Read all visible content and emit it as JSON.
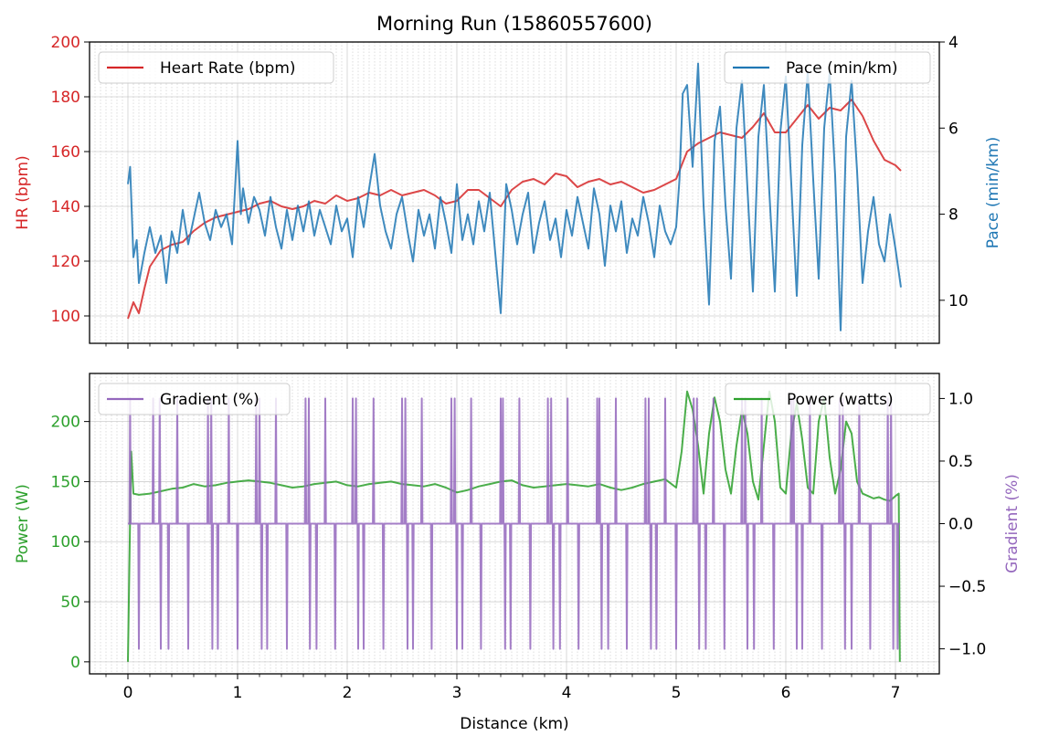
{
  "title": "Morning Run (15860557600)",
  "colors": {
    "hr": "#d62728",
    "pace": "#1f77b4",
    "power": "#2ca02c",
    "gradient": "#9467bd",
    "grid": "#b0b0b0"
  },
  "chart_data": [
    {
      "type": "line",
      "panel": "top",
      "xlabel": "",
      "x_range": [
        -0.35,
        7.4
      ],
      "x_ticks": [
        0,
        1,
        2,
        3,
        4,
        5,
        6,
        7
      ],
      "grid": true,
      "left_axis": {
        "label": "HR (bpm)",
        "range": [
          90,
          200
        ],
        "ticks": [
          100,
          120,
          140,
          160,
          180,
          200
        ]
      },
      "right_axis": {
        "label": "Pace (min/km)",
        "inverted": true,
        "range": [
          4,
          11
        ],
        "ticks": [
          4,
          6,
          8,
          10
        ]
      },
      "legend_left": {
        "label": "Heart Rate (bpm)",
        "placement": "upper-left"
      },
      "legend_right": {
        "label": "Pace (min/km)",
        "placement": "upper-right"
      },
      "series": [
        {
          "name": "Heart Rate (bpm)",
          "axis": "left",
          "x": [
            0,
            0.05,
            0.1,
            0.15,
            0.2,
            0.3,
            0.4,
            0.5,
            0.6,
            0.7,
            0.8,
            0.9,
            1.0,
            1.1,
            1.2,
            1.3,
            1.4,
            1.5,
            1.6,
            1.7,
            1.8,
            1.9,
            2.0,
            2.1,
            2.2,
            2.3,
            2.4,
            2.5,
            2.6,
            2.7,
            2.8,
            2.9,
            3.0,
            3.1,
            3.2,
            3.3,
            3.4,
            3.5,
            3.6,
            3.7,
            3.8,
            3.9,
            4.0,
            4.1,
            4.2,
            4.3,
            4.4,
            4.5,
            4.6,
            4.7,
            4.8,
            4.9,
            5.0,
            5.05,
            5.1,
            5.2,
            5.3,
            5.4,
            5.5,
            5.6,
            5.7,
            5.8,
            5.9,
            6.0,
            6.1,
            6.2,
            6.3,
            6.4,
            6.5,
            6.6,
            6.7,
            6.8,
            6.9,
            7.0,
            7.05
          ],
          "y": [
            99,
            105,
            101,
            110,
            118,
            124,
            126,
            127,
            131,
            134,
            136,
            137,
            138,
            139,
            141,
            142,
            140,
            139,
            140,
            142,
            141,
            144,
            142,
            143,
            145,
            144,
            146,
            144,
            145,
            146,
            144,
            141,
            142,
            146,
            146,
            143,
            140,
            146,
            149,
            150,
            148,
            152,
            151,
            147,
            149,
            150,
            148,
            149,
            147,
            145,
            146,
            148,
            150,
            155,
            160,
            163,
            165,
            167,
            166,
            165,
            169,
            174,
            167,
            167,
            172,
            177,
            172,
            176,
            175,
            179,
            173,
            164,
            157,
            155,
            153
          ]
        },
        {
          "name": "Pace (min/km)",
          "axis": "right",
          "x": [
            0,
            0.02,
            0.05,
            0.08,
            0.1,
            0.15,
            0.2,
            0.25,
            0.3,
            0.35,
            0.4,
            0.45,
            0.5,
            0.55,
            0.6,
            0.65,
            0.7,
            0.75,
            0.8,
            0.85,
            0.9,
            0.95,
            1.0,
            1.03,
            1.05,
            1.1,
            1.15,
            1.2,
            1.25,
            1.3,
            1.35,
            1.4,
            1.45,
            1.5,
            1.55,
            1.6,
            1.65,
            1.7,
            1.75,
            1.8,
            1.85,
            1.9,
            1.95,
            2.0,
            2.05,
            2.1,
            2.15,
            2.2,
            2.25,
            2.3,
            2.35,
            2.4,
            2.45,
            2.5,
            2.55,
            2.6,
            2.65,
            2.7,
            2.75,
            2.8,
            2.85,
            2.9,
            2.95,
            3.0,
            3.05,
            3.1,
            3.15,
            3.2,
            3.25,
            3.3,
            3.35,
            3.4,
            3.45,
            3.5,
            3.55,
            3.6,
            3.65,
            3.7,
            3.75,
            3.8,
            3.85,
            3.9,
            3.95,
            4.0,
            4.05,
            4.1,
            4.15,
            4.2,
            4.25,
            4.3,
            4.35,
            4.4,
            4.45,
            4.5,
            4.55,
            4.6,
            4.65,
            4.7,
            4.75,
            4.8,
            4.85,
            4.9,
            4.95,
            5.0,
            5.03,
            5.06,
            5.1,
            5.15,
            5.2,
            5.25,
            5.3,
            5.35,
            5.4,
            5.45,
            5.5,
            5.55,
            5.6,
            5.65,
            5.7,
            5.75,
            5.8,
            5.85,
            5.9,
            5.95,
            6.0,
            6.05,
            6.1,
            6.15,
            6.2,
            6.25,
            6.3,
            6.35,
            6.4,
            6.45,
            6.5,
            6.55,
            6.6,
            6.65,
            6.7,
            6.75,
            6.8,
            6.85,
            6.9,
            6.95,
            7.0,
            7.05
          ],
          "y": [
            7.3,
            6.9,
            9.0,
            8.6,
            9.6,
            8.9,
            8.3,
            8.9,
            8.5,
            9.6,
            8.4,
            8.9,
            7.9,
            8.7,
            8.1,
            7.5,
            8.2,
            8.6,
            7.9,
            8.3,
            8.0,
            8.7,
            6.3,
            8.0,
            7.4,
            8.2,
            7.6,
            7.9,
            8.5,
            7.6,
            8.3,
            8.8,
            7.9,
            8.6,
            7.8,
            8.4,
            7.7,
            8.5,
            7.9,
            8.3,
            8.7,
            7.8,
            8.4,
            8.1,
            9.0,
            7.6,
            8.3,
            7.4,
            6.6,
            7.8,
            8.4,
            8.8,
            8.0,
            7.6,
            8.4,
            9.1,
            7.9,
            8.5,
            8.0,
            8.8,
            7.6,
            8.2,
            8.9,
            7.3,
            8.6,
            8.0,
            8.7,
            7.7,
            8.4,
            7.5,
            8.9,
            10.3,
            7.3,
            7.9,
            8.7,
            8.0,
            7.5,
            8.9,
            8.2,
            7.7,
            8.6,
            8.1,
            9.0,
            7.9,
            8.5,
            7.6,
            8.2,
            8.8,
            7.4,
            8.0,
            9.2,
            7.8,
            8.4,
            7.7,
            8.9,
            8.1,
            8.5,
            7.6,
            8.2,
            9.0,
            7.8,
            8.4,
            8.7,
            8.3,
            7.2,
            5.2,
            5.0,
            6.9,
            4.5,
            7.8,
            10.1,
            6.3,
            5.5,
            7.8,
            9.5,
            6.0,
            4.9,
            7.4,
            9.8,
            6.2,
            5.0,
            7.5,
            9.8,
            6.1,
            4.8,
            7.3,
            9.9,
            6.4,
            4.7,
            7.2,
            9.5,
            6.0,
            4.7,
            7.1,
            10.7,
            6.2,
            4.9,
            7.0,
            9.6,
            8.4,
            7.6,
            8.7,
            9.1,
            8.0,
            8.8,
            9.7
          ]
        }
      ]
    },
    {
      "type": "line",
      "panel": "bottom",
      "xlabel": "Distance (km)",
      "x_range": [
        -0.35,
        7.4
      ],
      "x_ticks": [
        0,
        1,
        2,
        3,
        4,
        5,
        6,
        7
      ],
      "grid": true,
      "left_axis": {
        "label": "Power (W)",
        "range": [
          -10,
          240
        ],
        "ticks": [
          0,
          50,
          100,
          150,
          200
        ]
      },
      "right_axis": {
        "label": "Gradient (%)",
        "range": [
          -1.2,
          1.2
        ],
        "ticks": [
          -1.0,
          -0.5,
          0.0,
          0.5,
          1.0
        ],
        "tick_labels": [
          "−1.0",
          "−0.5",
          "0.0",
          "0.5",
          "1.0"
        ]
      },
      "legend_left": {
        "label": "Gradient (%)",
        "placement": "upper-left"
      },
      "legend_right": {
        "label": "Power (watts)",
        "placement": "upper-right"
      },
      "series": [
        {
          "name": "Power (watts)",
          "axis": "left",
          "x": [
            0,
            0.01,
            0.02,
            0.03,
            0.05,
            0.1,
            0.2,
            0.3,
            0.4,
            0.5,
            0.6,
            0.7,
            0.8,
            0.9,
            1.0,
            1.1,
            1.2,
            1.3,
            1.4,
            1.5,
            1.6,
            1.7,
            1.8,
            1.9,
            2.0,
            2.1,
            2.2,
            2.3,
            2.4,
            2.5,
            2.6,
            2.7,
            2.8,
            2.9,
            3.0,
            3.1,
            3.2,
            3.3,
            3.4,
            3.5,
            3.6,
            3.7,
            3.8,
            3.9,
            4.0,
            4.1,
            4.2,
            4.3,
            4.4,
            4.5,
            4.6,
            4.7,
            4.8,
            4.9,
            5.0,
            5.05,
            5.1,
            5.15,
            5.2,
            5.25,
            5.3,
            5.35,
            5.4,
            5.45,
            5.5,
            5.55,
            5.6,
            5.65,
            5.7,
            5.75,
            5.8,
            5.85,
            5.9,
            5.95,
            6.0,
            6.05,
            6.1,
            6.15,
            6.2,
            6.25,
            6.3,
            6.35,
            6.4,
            6.45,
            6.5,
            6.55,
            6.6,
            6.65,
            6.7,
            6.75,
            6.8,
            6.85,
            6.9,
            6.95,
            7.0,
            7.03,
            7.04
          ],
          "y": [
            0,
            60,
            120,
            175,
            140,
            139,
            140,
            142,
            144,
            145,
            148,
            146,
            147,
            149,
            150,
            151,
            150,
            149,
            147,
            145,
            146,
            148,
            149,
            150,
            147,
            146,
            148,
            149,
            150,
            148,
            147,
            146,
            148,
            145,
            141,
            143,
            146,
            148,
            150,
            151,
            147,
            145,
            146,
            147,
            148,
            147,
            146,
            148,
            145,
            143,
            145,
            148,
            150,
            152,
            145,
            175,
            225,
            210,
            180,
            140,
            190,
            220,
            200,
            160,
            140,
            180,
            210,
            190,
            150,
            135,
            180,
            225,
            200,
            145,
            140,
            190,
            215,
            185,
            145,
            140,
            200,
            220,
            170,
            140,
            160,
            200,
            190,
            150,
            140,
            138,
            136,
            137,
            135,
            134,
            138,
            140,
            0
          ]
        },
        {
          "name": "Gradient (%)",
          "axis": "right",
          "baseline": 0,
          "spike_amplitude": 1.0,
          "spikes_up_x": [
            0.02,
            0.23,
            0.29,
            0.45,
            0.73,
            0.76,
            0.92,
            1.17,
            1.2,
            1.35,
            1.62,
            1.65,
            1.8,
            2.05,
            2.08,
            2.24,
            2.5,
            2.53,
            2.68,
            2.95,
            2.98,
            3.13,
            3.4,
            3.42,
            3.57,
            3.83,
            3.86,
            4.01,
            4.28,
            4.3,
            4.45,
            4.72,
            4.75,
            4.9,
            5.16,
            5.19,
            5.34,
            5.6,
            5.63,
            5.78,
            6.05,
            6.07,
            6.22,
            6.49,
            6.52,
            6.67,
            6.93,
            6.96
          ],
          "spikes_down_x": [
            0.1,
            0.3,
            0.37,
            0.55,
            0.77,
            0.82,
            1.0,
            1.22,
            1.27,
            1.45,
            1.66,
            1.72,
            1.89,
            2.1,
            2.15,
            2.33,
            2.55,
            2.6,
            2.77,
            3.0,
            3.05,
            3.22,
            3.44,
            3.49,
            3.67,
            3.88,
            3.94,
            4.11,
            4.32,
            4.38,
            4.55,
            4.77,
            4.82,
            5.0,
            5.21,
            5.27,
            5.44,
            5.65,
            5.71,
            5.89,
            6.1,
            6.15,
            6.33,
            6.54,
            6.6,
            6.77,
            6.98,
            7.02
          ]
        }
      ]
    }
  ]
}
